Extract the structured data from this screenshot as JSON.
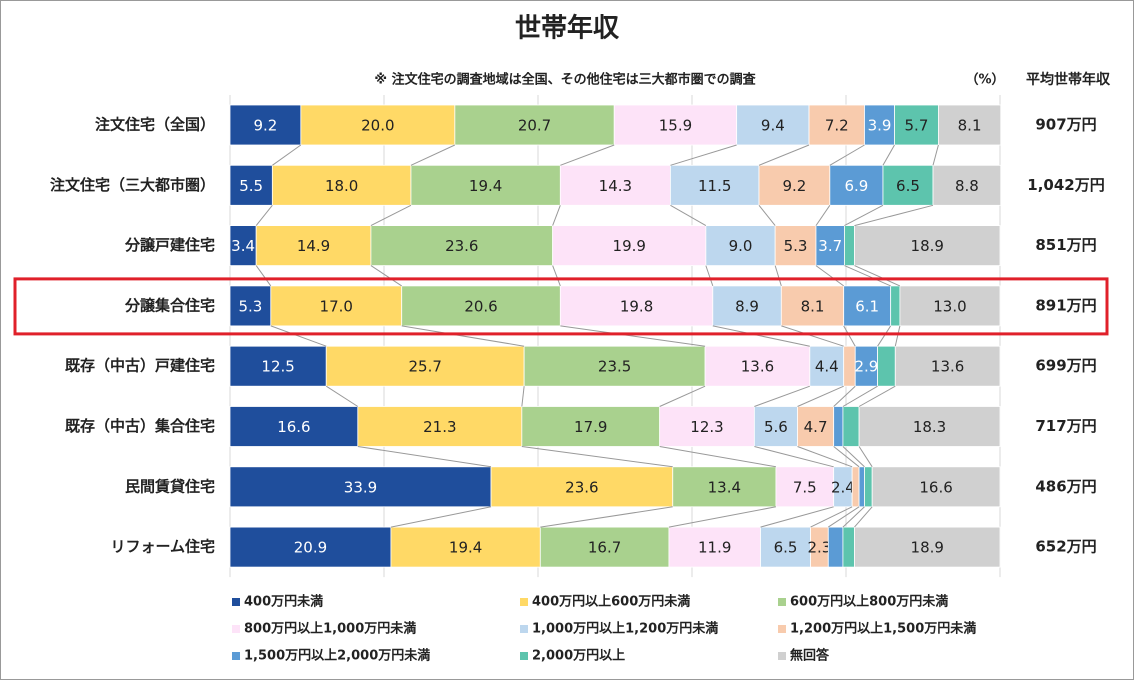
{
  "chart_data": {
    "type": "stacked-bar-horizontal",
    "title": "世帯年収",
    "note": "※ 注文住宅の調査地域は全国、その他住宅は三大都市圏での調査",
    "unit_label": "（%）",
    "average_header": "平均世帯年収",
    "categories": [
      "注文住宅（全国）",
      "注文住宅（三大都市圏）",
      "分譲戸建住宅",
      "分譲集合住宅",
      "既存（中古）戸建住宅",
      "既存（中古）集合住宅",
      "民間賃貸住宅",
      "リフォーム住宅"
    ],
    "averages": [
      "907万円",
      "1,042万円",
      "851万円",
      "891万円",
      "699万円",
      "717万円",
      "486万円",
      "652万円"
    ],
    "highlight_index": 3,
    "xlim": [
      0,
      100
    ],
    "xticks": [
      0,
      20,
      40,
      60,
      80,
      100
    ],
    "grid": true,
    "series": [
      {
        "name": "400万円未満",
        "color": "#1f4e9c",
        "label_color": "#ffffff",
        "values": [
          9.2,
          5.5,
          3.4,
          5.3,
          12.5,
          16.6,
          33.9,
          20.9
        ],
        "value_labels": [
          "9.2",
          "5.5",
          "3.4",
          "5.3",
          "12.5",
          "16.6",
          "33.9",
          "20.9"
        ]
      },
      {
        "name": "400万円以上600万円未満",
        "color": "#ffd966",
        "label_color": "#222222",
        "values": [
          20.0,
          18.0,
          14.9,
          17.0,
          25.7,
          21.3,
          23.6,
          19.4
        ],
        "value_labels": [
          "20.0",
          "18.0",
          "14.9",
          "17.0",
          "25.7",
          "21.3",
          "23.6",
          "19.4"
        ]
      },
      {
        "name": "600万円以上800万円未満",
        "color": "#a9d18e",
        "label_color": "#222222",
        "values": [
          20.7,
          19.4,
          23.6,
          20.6,
          23.5,
          17.9,
          13.4,
          16.7
        ],
        "value_labels": [
          "20.7",
          "19.4",
          "23.6",
          "20.6",
          "23.5",
          "17.9",
          "13.4",
          "16.7"
        ]
      },
      {
        "name": "800万円以上1,000万円未満",
        "color": "#fde3f8",
        "label_color": "#222222",
        "values": [
          15.9,
          14.3,
          19.9,
          19.8,
          13.6,
          12.3,
          7.5,
          11.9
        ],
        "value_labels": [
          "15.9",
          "14.3",
          "19.9",
          "19.8",
          "13.6",
          "12.3",
          "7.5",
          "11.9"
        ]
      },
      {
        "name": "1,000万円以上1,200万円未満",
        "color": "#bdd7ee",
        "label_color": "#222222",
        "values": [
          9.4,
          11.5,
          9.0,
          8.9,
          4.4,
          5.6,
          2.4,
          6.5
        ],
        "value_labels": [
          "9.4",
          "11.5",
          "9.0",
          "8.9",
          "4.4",
          "5.6",
          "2.4",
          "6.5"
        ]
      },
      {
        "name": "1,200万円以上1,500万円未満",
        "color": "#f8cbad",
        "label_color": "#222222",
        "values": [
          7.2,
          9.2,
          5.3,
          8.1,
          1.5,
          4.7,
          0.9,
          2.3
        ],
        "value_labels": [
          "7.2",
          "9.2",
          "5.3",
          "8.1",
          null,
          "4.7",
          null,
          "2.3"
        ]
      },
      {
        "name": "1,500万円以上2,000万円未満",
        "color": "#5b9bd5",
        "label_color": "#ffffff",
        "values": [
          3.9,
          6.9,
          3.7,
          6.1,
          2.9,
          1.2,
          0.7,
          1.9
        ],
        "value_labels": [
          "3.9",
          "6.9",
          "3.7",
          "6.1",
          "2.9",
          null,
          null,
          null
        ]
      },
      {
        "name": "2,000万円以上",
        "color": "#5dc4ad",
        "label_color": "#222222",
        "values": [
          5.7,
          6.5,
          1.3,
          1.2,
          2.3,
          2.1,
          1.0,
          1.5
        ],
        "value_labels": [
          "5.7",
          "6.5",
          null,
          null,
          null,
          null,
          null,
          null
        ]
      },
      {
        "name": "無回答",
        "color": "#d0d0d0",
        "label_color": "#222222",
        "values": [
          8.1,
          8.8,
          18.9,
          13.0,
          13.6,
          18.3,
          16.6,
          18.9
        ],
        "value_labels": [
          "8.1",
          "8.8",
          "18.9",
          "13.0",
          "13.6",
          "18.3",
          "16.6",
          "18.9"
        ]
      }
    ]
  }
}
